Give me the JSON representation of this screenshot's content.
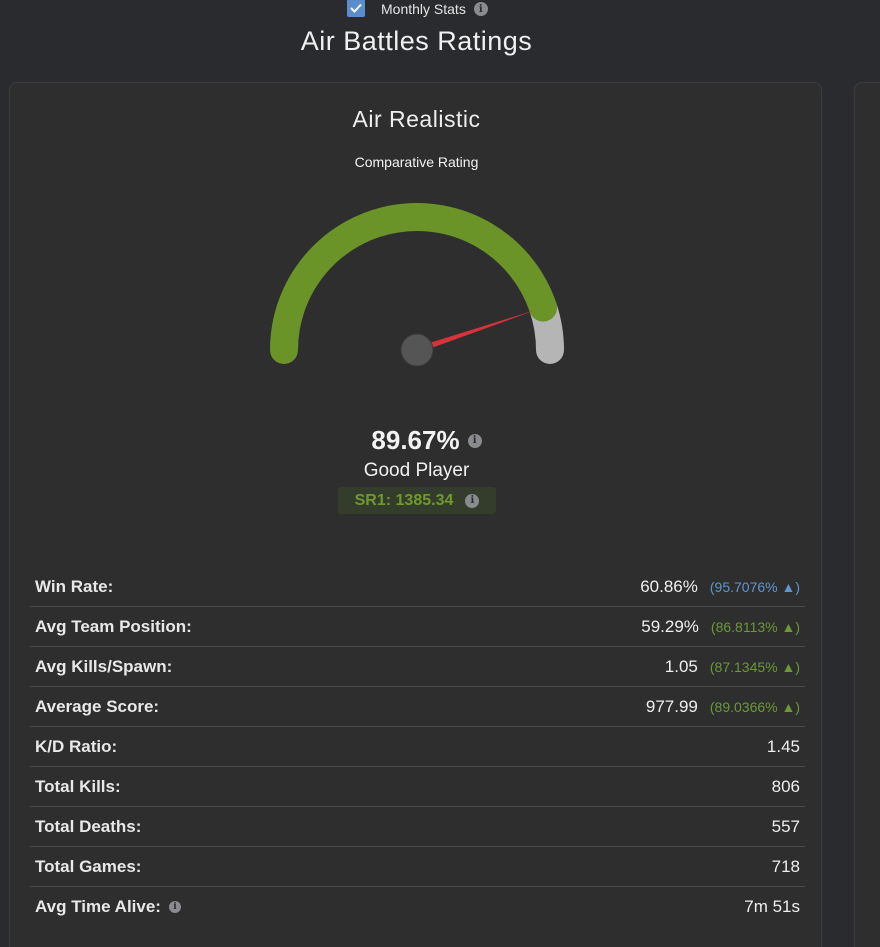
{
  "header": {
    "monthly_label": "Monthly Stats",
    "monthly_checked": true,
    "title": "Air Battles Ratings"
  },
  "card": {
    "title": "Air Realistic",
    "subtitle": "Comparative Rating",
    "gauge": {
      "value_fraction": 0.8967,
      "colors": {
        "filled": "#6b9428",
        "remaining": "#b5b5b5",
        "needle": "#d8323a",
        "hub": "#555555"
      }
    },
    "percent": "89.67%",
    "rating_label": "Good Player",
    "sr": "SR1: 1385.34"
  },
  "stats": [
    {
      "label": "Win Rate:",
      "value": "60.86%",
      "compare": "(95.7076% ▲)",
      "compare_color": "#5f95cf"
    },
    {
      "label": "Avg Team Position:",
      "value": "59.29%",
      "compare": "(86.8113% ▲)",
      "compare_color": "#6a9a35"
    },
    {
      "label": "Avg Kills/Spawn:",
      "value": "1.05",
      "compare": "(87.1345% ▲)",
      "compare_color": "#6a9a35"
    },
    {
      "label": "Average Score:",
      "value": "977.99",
      "compare": "(89.0366% ▲)",
      "compare_color": "#6a9a35"
    },
    {
      "label": "K/D Ratio:",
      "value": "1.45"
    },
    {
      "label": "Total Kills:",
      "value": "806"
    },
    {
      "label": "Total Deaths:",
      "value": "557"
    },
    {
      "label": "Total Games:",
      "value": "718"
    },
    {
      "label": "Avg Time Alive:",
      "value": "7m 51s",
      "info": true
    }
  ]
}
